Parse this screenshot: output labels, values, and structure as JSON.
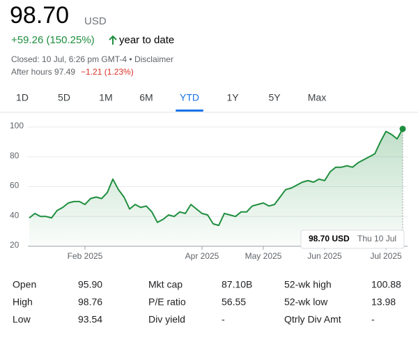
{
  "header": {
    "price": "98.70",
    "currency": "USD",
    "change": "+59.26 (150.25%)",
    "period": "year to date",
    "closed": "Closed: 10 Jul, 6:26 pm GMT-4 • Disclaimer",
    "after_hours": "After hours 97.49",
    "after_change": "−1.21 (1.23%)"
  },
  "tabs": {
    "items": [
      "1D",
      "5D",
      "1M",
      "6M",
      "YTD",
      "1Y",
      "5Y",
      "Max"
    ],
    "selected": 4
  },
  "chart_data": {
    "type": "line",
    "categories": [
      null,
      null,
      null,
      null,
      null,
      null,
      null,
      null,
      null,
      null,
      "Feb 2025",
      null,
      null,
      null,
      null,
      null,
      null,
      null,
      null,
      null,
      null,
      null,
      null,
      null,
      null,
      null,
      null,
      null,
      null,
      null,
      null,
      "Apr 2025",
      null,
      null,
      null,
      null,
      null,
      null,
      null,
      null,
      null,
      null,
      "May 2025",
      null,
      null,
      null,
      null,
      null,
      null,
      null,
      null,
      null,
      null,
      "Jun 2025",
      null,
      null,
      null,
      null,
      null,
      null,
      null,
      null,
      null,
      null,
      "Jul 2025",
      null,
      null,
      null
    ],
    "series": [
      {
        "color": "#1e8e3e",
        "values": [
          39,
          42,
          40,
          40,
          39,
          44,
          46,
          49,
          50,
          50,
          48,
          52,
          53,
          52,
          56,
          65,
          58,
          53,
          45,
          48,
          46,
          47,
          43,
          36,
          38,
          41,
          40,
          43,
          42,
          48,
          45,
          42,
          41,
          35,
          34,
          42,
          41,
          40,
          43,
          43,
          47,
          48,
          49,
          47,
          48,
          53,
          58,
          59,
          61,
          63,
          64,
          63,
          65,
          64,
          70,
          73,
          73,
          74,
          73,
          76,
          78,
          80,
          82,
          90,
          97,
          95,
          92,
          98.7
        ]
      }
    ],
    "ylim": [
      20,
      100
    ],
    "yticks": [
      20,
      40,
      60,
      80,
      100
    ],
    "grid": true,
    "tooltip": {
      "price": "98.70 USD",
      "date": "Thu 10 Jul"
    }
  },
  "table": {
    "rows": [
      [
        "Open",
        "95.90",
        "Mkt cap",
        "87.10B",
        "52-wk high",
        "100.88"
      ],
      [
        "High",
        "98.76",
        "P/E ratio",
        "56.55",
        "52-wk low",
        "13.98"
      ],
      [
        "Low",
        "93.54",
        "Div yield",
        "-",
        "Qtrly Div Amt",
        "-"
      ]
    ]
  }
}
